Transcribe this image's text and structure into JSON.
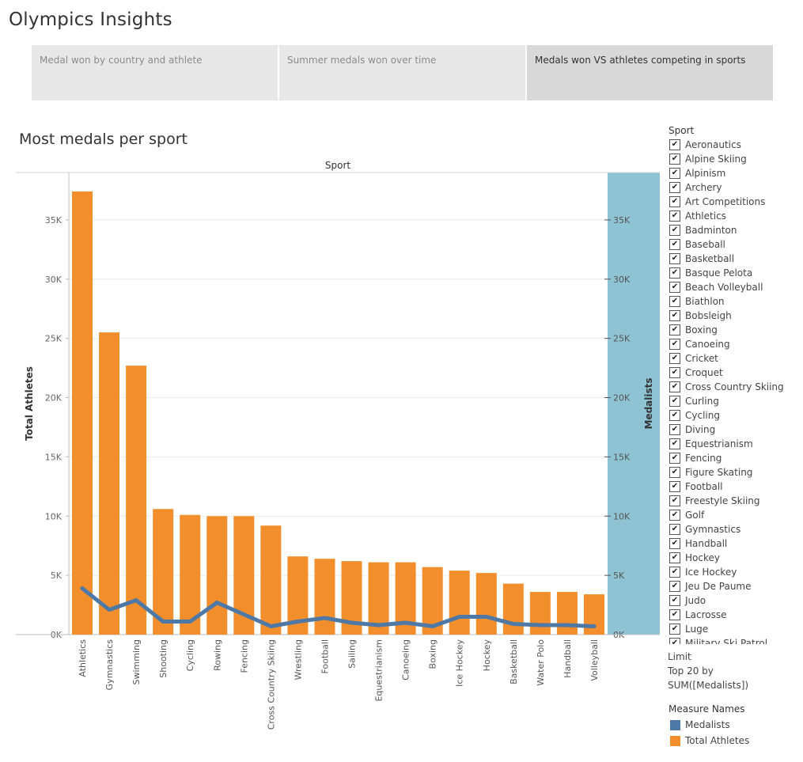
{
  "app_title": "Olympics Insights",
  "tabs": [
    {
      "label": "Medal won by country and athlete",
      "active": false
    },
    {
      "label": "Summer medals won over time",
      "active": false
    },
    {
      "label": "Medals won VS athletes competing in sports",
      "active": true
    }
  ],
  "chart_title": "Most medals per sport",
  "filter": {
    "title": "Sport",
    "items": [
      "Aeronautics",
      "Alpine Skiing",
      "Alpinism",
      "Archery",
      "Art Competitions",
      "Athletics",
      "Badminton",
      "Baseball",
      "Basketball",
      "Basque Pelota",
      "Beach Volleyball",
      "Biathlon",
      "Bobsleigh",
      "Boxing",
      "Canoeing",
      "Cricket",
      "Croquet",
      "Cross Country Skiing",
      "Curling",
      "Cycling",
      "Diving",
      "Equestrianism",
      "Fencing",
      "Figure Skating",
      "Football",
      "Freestyle Skiing",
      "Golf",
      "Gymnastics",
      "Handball",
      "Hockey",
      "Ice Hockey",
      "Jeu De Paume",
      "Judo",
      "Lacrosse",
      "Luge",
      "Military Ski Patrol"
    ]
  },
  "limit": {
    "line1": "Limit",
    "line2": "Top 20 by",
    "line3": "SUM([Medalists])"
  },
  "legend": {
    "title": "Measure Names",
    "items": [
      {
        "label": "Medalists",
        "color": "#4e79a7"
      },
      {
        "label": "Total Athletes",
        "color": "#f28e2b"
      }
    ]
  },
  "chart_data": {
    "type": "bar",
    "header": "Sport",
    "categories": [
      "Athletics",
      "Gymnastics",
      "Swimming",
      "Shooting",
      "Cycling",
      "Rowing",
      "Fencing",
      "Cross Country Skiing",
      "Wrestling",
      "Football",
      "Sailing",
      "Equestrianism",
      "Canoeing",
      "Boxing",
      "Ice Hockey",
      "Hockey",
      "Basketball",
      "Water Polo",
      "Handball",
      "Volleyball"
    ],
    "series": [
      {
        "name": "Total Athletes",
        "type": "bar",
        "color": "#f28e2b",
        "values": [
          37400,
          25500,
          22700,
          10600,
          10100,
          10000,
          10000,
          9200,
          6600,
          6400,
          6200,
          6100,
          6100,
          5700,
          5400,
          5200,
          4300,
          3600,
          3600,
          3400
        ]
      },
      {
        "name": "Medalists",
        "type": "line",
        "color": "#4e79a7",
        "values": [
          3900,
          2100,
          2900,
          1100,
          1100,
          2700,
          1700,
          700,
          1100,
          1400,
          1000,
          800,
          1000,
          700,
          1500,
          1500,
          900,
          800,
          800,
          700
        ]
      }
    ],
    "ylabel_left": "Total Athletes",
    "ylabel_right": "Medalists",
    "ylim": [
      0,
      39000
    ],
    "yticks": [
      0,
      5000,
      10000,
      15000,
      20000,
      25000,
      30000,
      35000
    ],
    "ytick_labels": [
      "0K",
      "5K",
      "10K",
      "15K",
      "20K",
      "25K",
      "30K",
      "35K"
    ],
    "right_axis_background": "#8ec3d3",
    "grid": true
  }
}
